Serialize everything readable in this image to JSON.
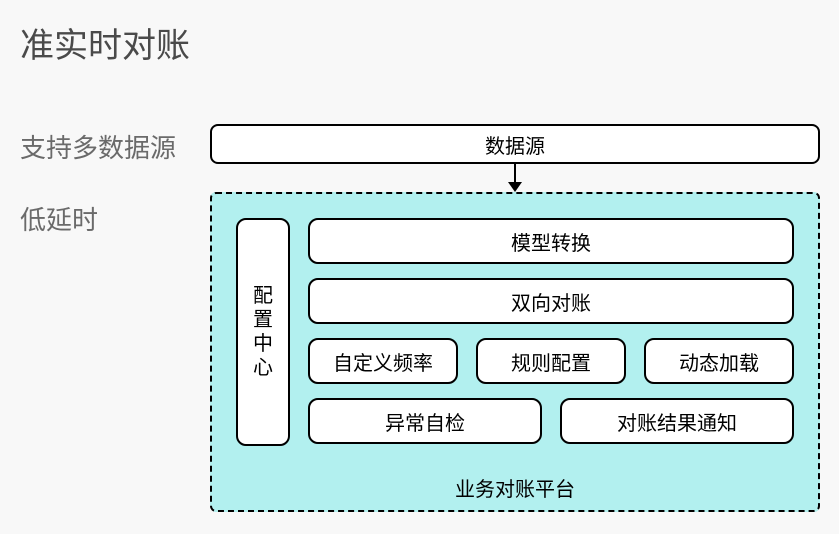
{
  "title": "准实时对账",
  "side_labels": {
    "multi_source": "支持多数据源",
    "low_latency": "低延时"
  },
  "diagram": {
    "type": "flowchart",
    "background_color": "#f8f8f8",
    "platform_bg": "#b2f0ef",
    "node_bg": "#ffffff",
    "border_color": "#000000",
    "border_width": 2,
    "border_radius": 10,
    "font_size": 20,
    "datasource": {
      "label": "数据源"
    },
    "platform_label": "业务对账平台",
    "config_center": {
      "label": "配置中心"
    },
    "rows": {
      "row1": {
        "model_transform": "模型转换"
      },
      "row2": {
        "bidir_recon": "双向对账"
      },
      "row3": {
        "custom_freq": "自定义频率",
        "rule_config": "规则配置",
        "dynamic_load": "动态加载"
      },
      "row4": {
        "anomaly_check": "异常自检",
        "result_notify": "对账结果通知"
      }
    },
    "edges": [
      {
        "from": "datasource",
        "to": "platform",
        "style": "arrow-down"
      }
    ]
  }
}
